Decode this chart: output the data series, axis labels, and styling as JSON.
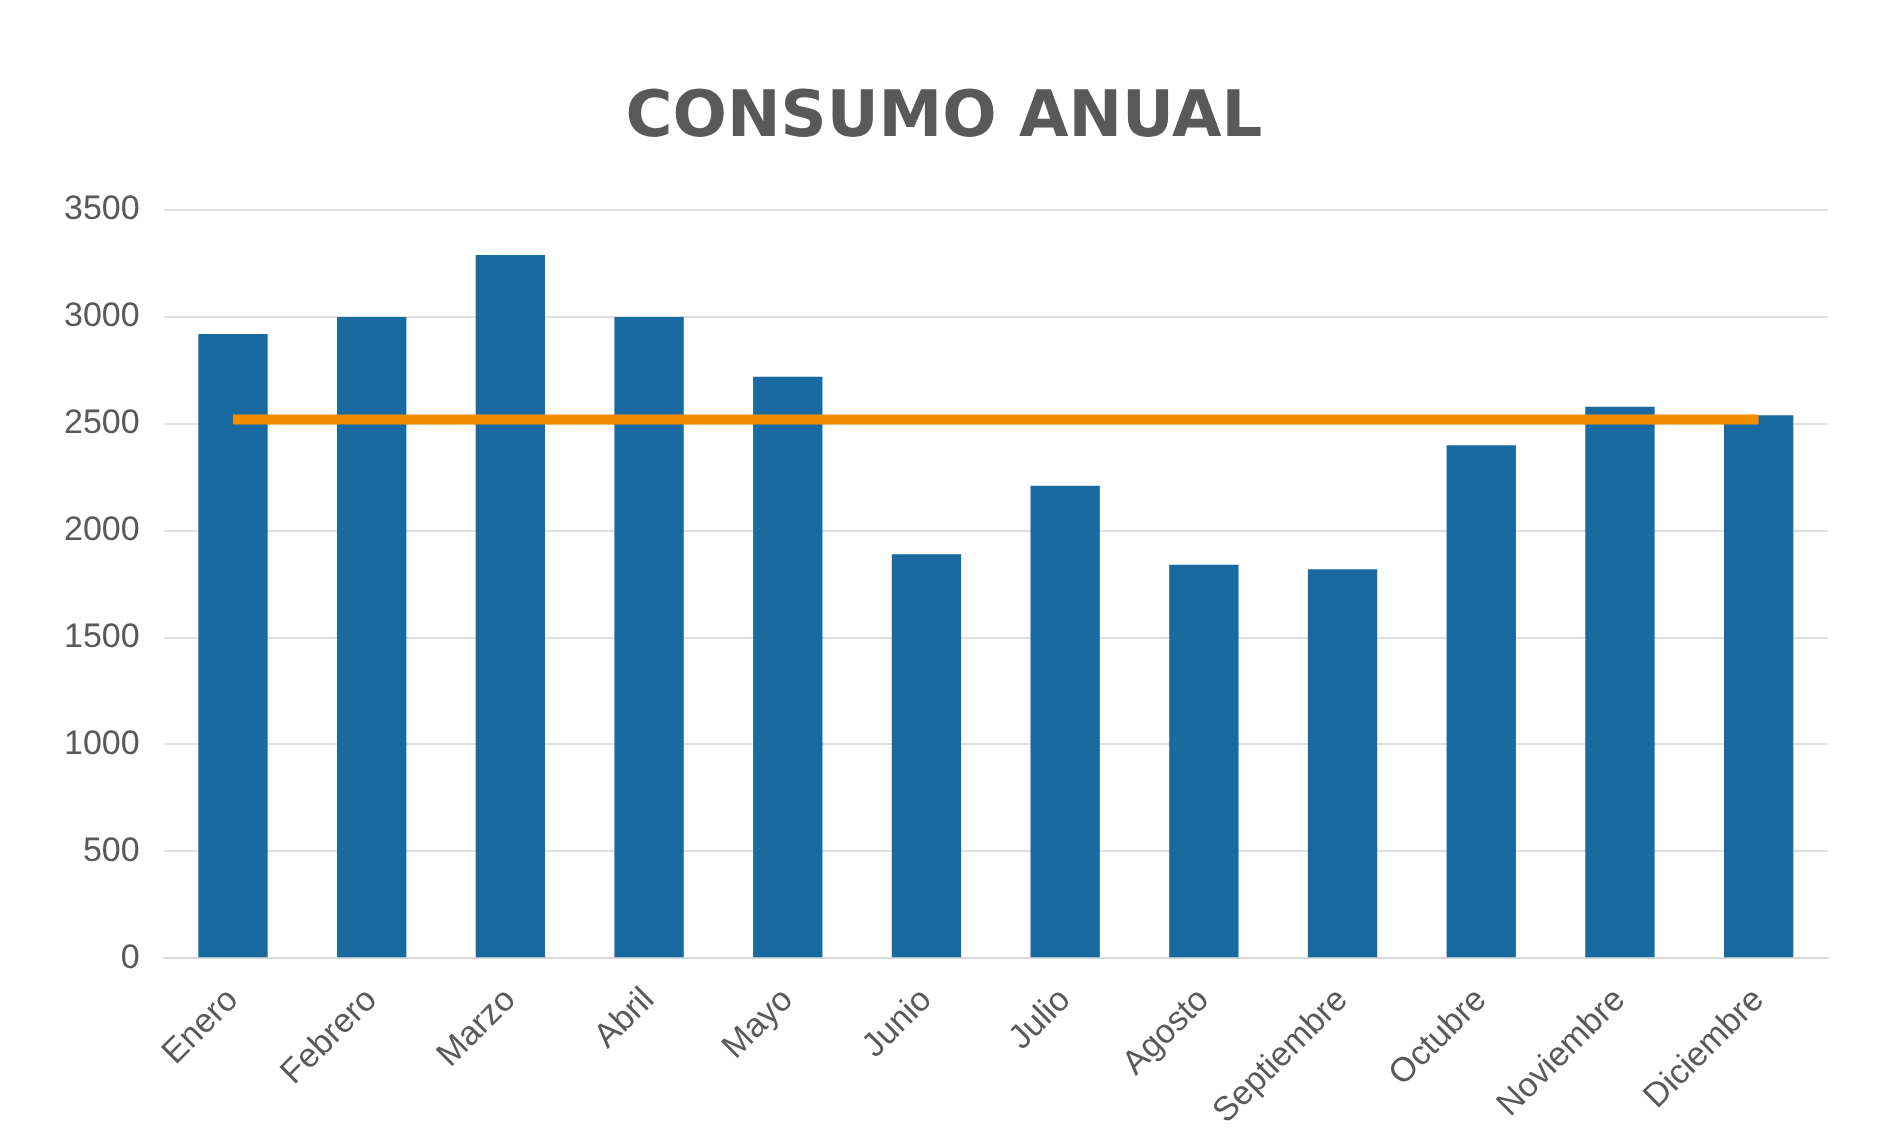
{
  "chart_data": {
    "type": "bar",
    "title": "CONSUMO ANUAL",
    "categories": [
      "Enero",
      "Febrero",
      "Marzo",
      "Abril",
      "Mayo",
      "Junio",
      "Julio",
      "Agosto",
      "Septiembre",
      "Octubre",
      "Noviembre",
      "Diciembre"
    ],
    "series": [
      {
        "color": "#1a6aa2",
        "values": [
          2920,
          3000,
          3290,
          3000,
          2720,
          1890,
          2210,
          1840,
          1820,
          2400,
          2580,
          2540
        ]
      },
      {
        "type": "line",
        "color": "#f28c00",
        "values": [
          2520,
          2520,
          2520,
          2520,
          2520,
          2520,
          2520,
          2520,
          2520,
          2520,
          2520,
          2520
        ]
      }
    ],
    "ylim": [
      0,
      3500
    ],
    "yticks": [
      0,
      500,
      1000,
      1500,
      2000,
      2500,
      3000,
      3500
    ],
    "grid": "y",
    "legend": false,
    "marker": "none"
  }
}
